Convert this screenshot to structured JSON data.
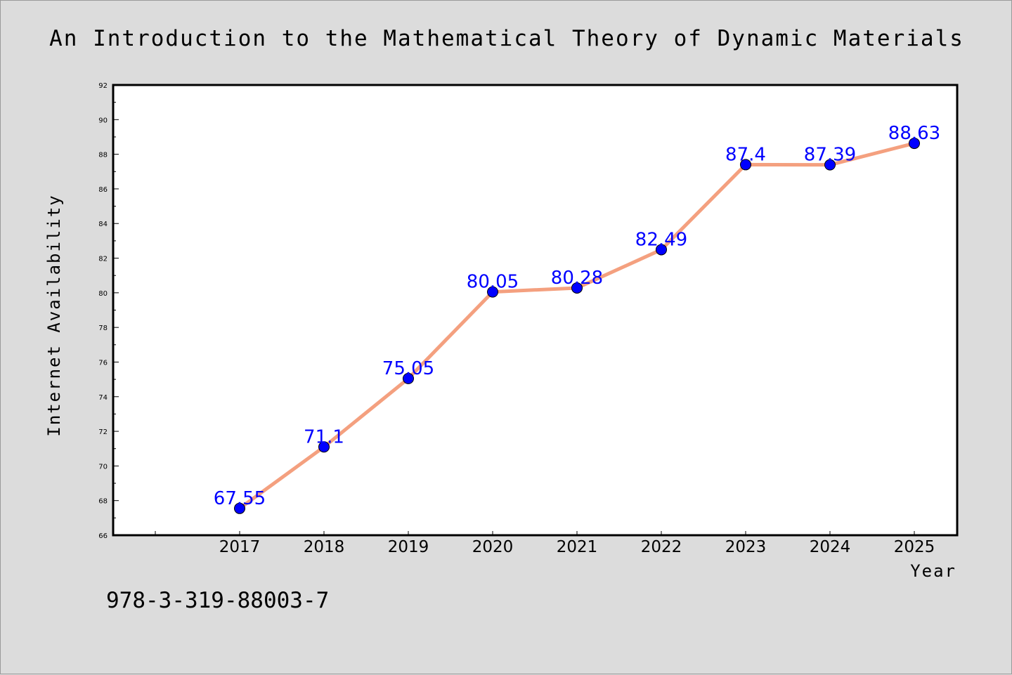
{
  "chart_data": {
    "type": "line",
    "title": "An Introduction to the Mathematical Theory of Dynamic Materials",
    "xlabel": "Year",
    "ylabel": "Internet Availability",
    "categories": [
      "2017",
      "2018",
      "2019",
      "2020",
      "2021",
      "2022",
      "2023",
      "2024",
      "2025"
    ],
    "series": [
      {
        "values": [
          67.55,
          71.1,
          75.05,
          80.05,
          80.28,
          82.49,
          87.4,
          87.39,
          88.63
        ],
        "labels": [
          "67.55",
          "71.1",
          "75.05",
          "80.05",
          "80.28",
          "82.49",
          "87.4",
          "87.39",
          "88.63"
        ],
        "line_color": "#f4a07f",
        "marker_color": "#0000ff"
      }
    ],
    "ylim": [
      66,
      92
    ],
    "yticks": [
      "66",
      "68",
      "70",
      "72",
      "74",
      "76",
      "78",
      "80",
      "82",
      "84",
      "86",
      "88",
      "90",
      "92"
    ],
    "grid": false,
    "legend": "none"
  },
  "footer": {
    "isbn": "978-3-319-88003-7"
  }
}
